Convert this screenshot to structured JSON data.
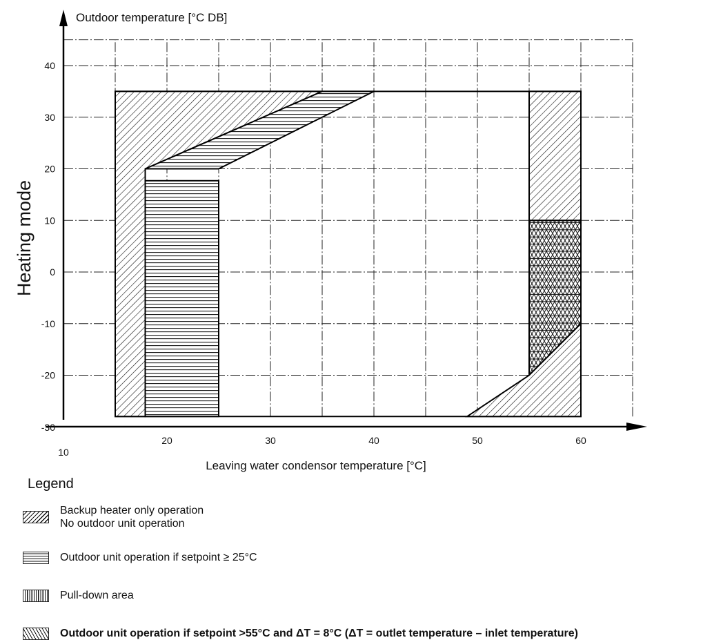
{
  "chart_data": {
    "type": "operating-envelope",
    "title": "Heating mode",
    "ylabel": "Outdoor temperature [°C DB]",
    "xlabel": "Leaving water condensor temperature [°C]",
    "xlim": [
      10,
      65
    ],
    "ylim": [
      -30,
      45
    ],
    "x_ticks": [
      10,
      20,
      30,
      40,
      50,
      60
    ],
    "y_ticks": [
      -30,
      -20,
      -10,
      0,
      10,
      20,
      30,
      40
    ],
    "grid": true,
    "regions": [
      {
        "name": "operating-envelope",
        "fill": "none",
        "points": [
          [
            15,
            -28
          ],
          [
            15,
            35
          ],
          [
            60,
            35
          ],
          [
            60,
            -28
          ]
        ]
      },
      {
        "name": "backup-left",
        "fill": "diag",
        "points": [
          [
            15,
            -28
          ],
          [
            15,
            35
          ],
          [
            35,
            35
          ],
          [
            17.9,
            20
          ],
          [
            17.9,
            -28
          ]
        ]
      },
      {
        "name": "outdoor-upper-band",
        "fill": "horiz",
        "points": [
          [
            17.9,
            20
          ],
          [
            35,
            35
          ],
          [
            40,
            35
          ],
          [
            25,
            20
          ]
        ]
      },
      {
        "name": "outdoor-left-column",
        "fill": "horiz",
        "points": [
          [
            17.9,
            17.7
          ],
          [
            25,
            17.7
          ],
          [
            25,
            -28
          ],
          [
            17.9,
            -28
          ]
        ]
      },
      {
        "name": "backup-right-top",
        "fill": "diag",
        "points": [
          [
            55,
            35
          ],
          [
            60,
            35
          ],
          [
            60,
            10
          ],
          [
            55,
            10
          ]
        ]
      },
      {
        "name": "triangle-area",
        "fill": "tri",
        "points": [
          [
            55,
            10
          ],
          [
            60,
            10
          ],
          [
            60,
            -10
          ],
          [
            55,
            -20
          ]
        ]
      },
      {
        "name": "backup-right-bottom",
        "fill": "diag",
        "points": [
          [
            49,
            -28
          ],
          [
            55,
            -20
          ],
          [
            60,
            -10
          ],
          [
            60,
            -28
          ]
        ]
      }
    ]
  },
  "legend": {
    "title": "Legend",
    "items": [
      {
        "pattern": "diag",
        "lines": [
          "Backup heater only operation",
          "No outdoor unit operation"
        ],
        "bold": false
      },
      {
        "pattern": "horiz",
        "lines": [
          "Outdoor unit operation if setpoint ≥ 25°C"
        ],
        "bold": false
      },
      {
        "pattern": "vert",
        "lines": [
          "Pull-down area"
        ],
        "bold": false
      },
      {
        "pattern": "tri",
        "lines": [
          "Outdoor unit operation if setpoint >55°C and ΔT = 8°C (ΔT = outlet temperature – inlet temperature)"
        ],
        "bold": true
      }
    ]
  }
}
